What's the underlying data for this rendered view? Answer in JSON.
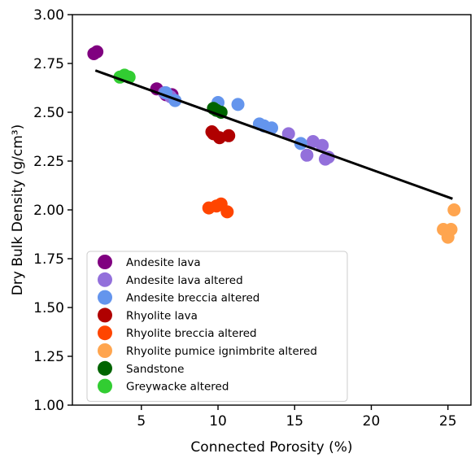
{
  "chart_data": {
    "type": "scatter",
    "xlabel": "Connected Porosity (%)",
    "ylabel": "Dry Bulk Density (g/cm³)",
    "xlim": [
      0.5,
      26.5
    ],
    "ylim": [
      1.0,
      3.0
    ],
    "x_ticks": [
      5,
      10,
      15,
      20,
      25
    ],
    "y_ticks": [
      1.0,
      1.25,
      1.5,
      1.75,
      2.0,
      2.25,
      2.5,
      2.75,
      3.0
    ],
    "x_tick_labels": [
      "5",
      "10",
      "15",
      "20",
      "25"
    ],
    "y_tick_labels": [
      "1.00",
      "1.25",
      "1.50",
      "1.75",
      "2.00",
      "2.25",
      "2.50",
      "2.75",
      "3.00"
    ],
    "grid": false,
    "legend_position": "lower-left",
    "series": [
      {
        "name": "Andesite lava",
        "color": "#800080",
        "points": [
          [
            1.9,
            2.8
          ],
          [
            2.1,
            2.81
          ],
          [
            6.0,
            2.62
          ],
          [
            6.6,
            2.59
          ],
          [
            7.0,
            2.59
          ]
        ]
      },
      {
        "name": "Andesite lava altered",
        "color": "#9370DB",
        "points": [
          [
            6.5,
            2.6
          ],
          [
            6.9,
            2.58
          ],
          [
            14.6,
            2.39
          ],
          [
            15.8,
            2.28
          ],
          [
            16.2,
            2.35
          ],
          [
            16.8,
            2.33
          ],
          [
            17.0,
            2.26
          ],
          [
            17.2,
            2.27
          ]
        ]
      },
      {
        "name": "Andesite breccia altered",
        "color": "#6495ED",
        "points": [
          [
            6.6,
            2.6
          ],
          [
            7.2,
            2.56
          ],
          [
            10.0,
            2.55
          ],
          [
            11.3,
            2.54
          ],
          [
            12.7,
            2.44
          ],
          [
            13.0,
            2.43
          ],
          [
            13.5,
            2.42
          ],
          [
            15.4,
            2.34
          ]
        ]
      },
      {
        "name": "Rhyolite lava",
        "color": "#B00000",
        "points": [
          [
            9.6,
            2.4
          ],
          [
            9.7,
            2.39
          ],
          [
            10.1,
            2.37
          ],
          [
            10.7,
            2.38
          ]
        ]
      },
      {
        "name": "Rhyolite breccia altered",
        "color": "#FF4500",
        "points": [
          [
            9.4,
            2.01
          ],
          [
            9.9,
            2.02
          ],
          [
            10.2,
            2.03
          ],
          [
            10.6,
            1.99
          ]
        ]
      },
      {
        "name": "Rhyolite pumice ignimbrite altered",
        "color": "#FFA54F",
        "points": [
          [
            24.7,
            1.9
          ],
          [
            25.0,
            1.86
          ],
          [
            25.2,
            1.9
          ],
          [
            25.4,
            2.0
          ]
        ]
      },
      {
        "name": "Sandstone",
        "color": "#006400",
        "points": [
          [
            9.7,
            2.52
          ],
          [
            10.2,
            2.5
          ],
          [
            9.9,
            2.51
          ]
        ]
      },
      {
        "name": "Greywacke altered",
        "color": "#32CD32",
        "points": [
          [
            3.6,
            2.68
          ],
          [
            3.9,
            2.69
          ],
          [
            4.2,
            2.68
          ]
        ]
      }
    ],
    "trend_line": {
      "color": "#000000",
      "x": [
        2.0,
        25.3
      ],
      "y": [
        2.714,
        2.057
      ]
    }
  }
}
